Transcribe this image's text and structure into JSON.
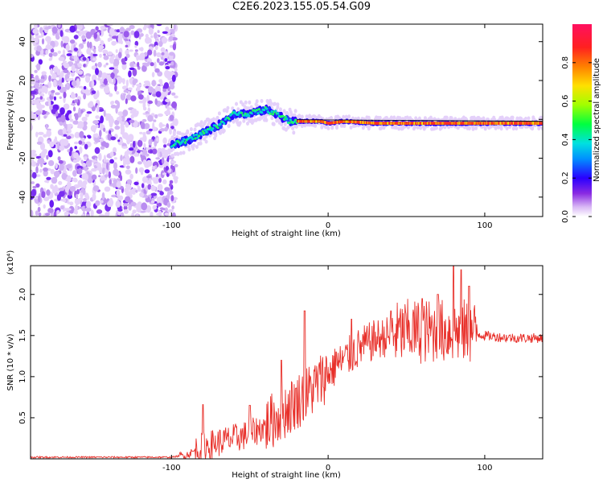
{
  "title": "C2E6.2023.155.05.54.G09",
  "chart_data": [
    {
      "type": "heatmap",
      "title": "C2E6.2023.155.05.54.G09",
      "xlabel": "Height of straight line (km)",
      "ylabel": "Frequency (Hz)",
      "xlim": [
        -190,
        137
      ],
      "ylim": [
        -50,
        49
      ],
      "x_ticks": [
        -100,
        0,
        100
      ],
      "x_tick_labels": [
        "-100",
        "0",
        "100"
      ],
      "y_ticks": [
        -40,
        -20,
        0,
        20,
        40
      ],
      "y_tick_labels": [
        "-40",
        "-20",
        "0",
        "20",
        "40"
      ],
      "noise_region_x": [
        -190,
        -97
      ],
      "ridge": {
        "x": [
          -100,
          -90,
          -80,
          -70,
          -60,
          -50,
          -40,
          -33,
          -25,
          -15,
          -5,
          0,
          10,
          30,
          60,
          90,
          137
        ],
        "freq": [
          -13,
          -11,
          -7,
          -3,
          3,
          3,
          5,
          3,
          -1,
          -1,
          -1,
          -2,
          -1,
          -2,
          -2,
          -2,
          -2
        ]
      },
      "colorbar": {
        "label": "Normalized spectral amplitude",
        "range": [
          0,
          1
        ],
        "ticks": [
          "0.0",
          "0.2",
          "0.4",
          "0.6",
          "0.8"
        ],
        "tick_values": [
          0.0,
          0.2,
          0.4,
          0.6,
          0.8
        ]
      },
      "grid": false
    },
    {
      "type": "line",
      "xlabel": "Height of straight line (km)",
      "ylabel": "SNR (10 * v/v)",
      "exponent_label": "(x10⁴)",
      "xlim": [
        -190,
        137
      ],
      "ylim": [
        0,
        2.35
      ],
      "x_ticks": [
        -100,
        0,
        100
      ],
      "x_tick_labels": [
        "-100",
        "0",
        "100"
      ],
      "y_ticks": [
        0.5,
        1.0,
        1.5,
        2.0
      ],
      "y_tick_labels": [
        "0.5",
        "1.0",
        "1.5",
        "2.0"
      ],
      "series": [
        {
          "color": "#e8302a",
          "x": [
            -190,
            -150,
            -100,
            -90,
            -80,
            -70,
            -60,
            -50,
            -40,
            -30,
            -20,
            -10,
            0,
            10,
            20,
            30,
            40,
            50,
            60,
            70,
            80,
            90,
            100,
            110,
            120,
            137
          ],
          "value": [
            0.02,
            0.02,
            0.02,
            0.05,
            0.15,
            0.2,
            0.25,
            0.3,
            0.4,
            0.55,
            0.7,
            0.85,
            1.05,
            1.2,
            1.35,
            1.45,
            1.5,
            1.55,
            1.55,
            1.55,
            1.55,
            1.55,
            1.5,
            1.48,
            1.47,
            1.47
          ],
          "peaks": [
            {
              "x": -80,
              "value": 0.66
            },
            {
              "x": -50,
              "value": 0.65
            },
            {
              "x": -30,
              "value": 1.2
            },
            {
              "x": -15,
              "value": 1.8
            },
            {
              "x": 5,
              "value": 1.3
            },
            {
              "x": 15,
              "value": 1.7
            },
            {
              "x": 40,
              "value": 1.8
            },
            {
              "x": 60,
              "value": 1.95
            },
            {
              "x": 70,
              "value": 2.0
            },
            {
              "x": 80,
              "value": 2.35
            },
            {
              "x": 85,
              "value": 2.3
            },
            {
              "x": 90,
              "value": 2.1
            }
          ]
        }
      ],
      "grid": false
    }
  ]
}
